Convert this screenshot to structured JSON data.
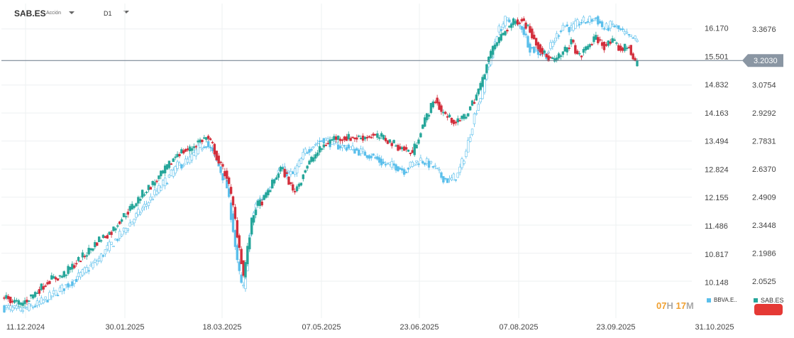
{
  "header": {
    "symbol": "SAB.ES",
    "symbol_type": "Acción",
    "timeframe": "D1"
  },
  "countdown": {
    "hours": "07",
    "hours_unit": "H",
    "minutes": "17",
    "minutes_unit": "M"
  },
  "legend": [
    {
      "label": "BBVA.E..",
      "color": "#5bbfeb"
    },
    {
      "label": "SAB.ES",
      "color": "#26a69a"
    }
  ],
  "colors": {
    "up": "#26a69a",
    "down": "#d32f3c",
    "compare": "#5bbfeb",
    "price_line": "#6b7a8a",
    "price_tag": "#8a96a3"
  },
  "chart_data": {
    "type": "candlestick",
    "title": "",
    "xlabel": "",
    "ylabel": "",
    "x_tick_labels": [
      "11.12.2024",
      "30.01.2025",
      "18.03.2025",
      "07.05.2025",
      "23.06.2025",
      "07.08.2025",
      "23.09.2025",
      "31.10.2025"
    ],
    "left_axis": {
      "ticks": [
        16.17,
        15.501,
        14.832,
        14.163,
        13.494,
        12.824,
        12.155,
        11.486,
        10.817,
        10.148
      ],
      "tick_labels": [
        "16.170",
        "15.501",
        "14.832",
        "14.163",
        "13.494",
        "12.824",
        "12.155",
        "11.486",
        "10.817",
        "10.148"
      ],
      "series": "BBVA.E.."
    },
    "right_axis": {
      "ticks": [
        3.3676,
        3.203,
        3.0754,
        2.9292,
        2.7831,
        2.637,
        2.4909,
        2.3448,
        2.1986,
        2.0525
      ],
      "tick_labels": [
        "3.3676",
        "",
        "3.0754",
        "2.9292",
        "2.7831",
        "2.6370",
        "2.4909",
        "2.3448",
        "2.1986",
        "2.0525"
      ],
      "series": "SAB.ES"
    },
    "ylim_right": [
      1.86,
      3.5
    ],
    "ylim_left": [
      9.3,
      16.75
    ],
    "current_price": 3.203,
    "current_price_label": "3.2030",
    "grid": true,
    "legend_position": "bottom-right",
    "sab_close_path": [
      [
        0,
        1.97
      ],
      [
        8,
        1.93
      ],
      [
        16,
        2.0
      ],
      [
        22,
        2.06
      ],
      [
        28,
        2.08
      ],
      [
        34,
        2.14
      ],
      [
        40,
        2.2
      ],
      [
        46,
        2.27
      ],
      [
        52,
        2.31
      ],
      [
        56,
        2.37
      ],
      [
        62,
        2.44
      ],
      [
        68,
        2.52
      ],
      [
        74,
        2.58
      ],
      [
        80,
        2.66
      ],
      [
        84,
        2.72
      ],
      [
        90,
        2.74
      ],
      [
        94,
        2.78
      ],
      [
        98,
        2.8
      ],
      [
        101,
        2.76
      ],
      [
        104,
        2.67
      ],
      [
        108,
        2.6
      ],
      [
        111,
        2.44
      ],
      [
        113,
        2.3
      ],
      [
        115,
        2.16
      ],
      [
        116,
        2.08
      ],
      [
        118,
        2.22
      ],
      [
        120,
        2.36
      ],
      [
        122,
        2.44
      ],
      [
        126,
        2.48
      ],
      [
        130,
        2.56
      ],
      [
        134,
        2.64
      ],
      [
        137,
        2.6
      ],
      [
        140,
        2.52
      ],
      [
        143,
        2.56
      ],
      [
        146,
        2.64
      ],
      [
        150,
        2.7
      ],
      [
        155,
        2.76
      ],
      [
        160,
        2.8
      ],
      [
        166,
        2.8
      ],
      [
        172,
        2.8
      ],
      [
        178,
        2.81
      ],
      [
        184,
        2.8
      ],
      [
        190,
        2.76
      ],
      [
        194,
        2.74
      ],
      [
        198,
        2.72
      ],
      [
        202,
        2.84
      ],
      [
        206,
        2.94
      ],
      [
        209,
        3.0
      ],
      [
        212,
        2.94
      ],
      [
        216,
        2.9
      ],
      [
        220,
        2.88
      ],
      [
        224,
        2.92
      ],
      [
        228,
        3.0
      ],
      [
        232,
        3.1
      ],
      [
        234,
        3.2
      ],
      [
        236,
        3.24
      ],
      [
        239,
        3.3
      ],
      [
        243,
        3.36
      ],
      [
        247,
        3.4
      ],
      [
        251,
        3.42
      ],
      [
        255,
        3.36
      ],
      [
        259,
        3.28
      ],
      [
        263,
        3.22
      ],
      [
        267,
        3.2
      ],
      [
        271,
        3.24
      ],
      [
        275,
        3.3
      ],
      [
        279,
        3.22
      ],
      [
        283,
        3.28
      ],
      [
        287,
        3.32
      ],
      [
        291,
        3.28
      ],
      [
        295,
        3.3
      ],
      [
        299,
        3.26
      ],
      [
        303,
        3.28
      ],
      [
        306,
        3.18
      ],
      [
        307,
        3.2
      ]
    ],
    "bbva_close_path": [
      [
        0,
        9.55
      ],
      [
        8,
        9.48
      ],
      [
        16,
        9.62
      ],
      [
        22,
        9.8
      ],
      [
        28,
        10.0
      ],
      [
        34,
        10.2
      ],
      [
        40,
        10.45
      ],
      [
        46,
        10.7
      ],
      [
        50,
        10.95
      ],
      [
        56,
        11.25
      ],
      [
        62,
        11.6
      ],
      [
        68,
        11.95
      ],
      [
        74,
        12.3
      ],
      [
        80,
        12.65
      ],
      [
        84,
        12.9
      ],
      [
        90,
        13.05
      ],
      [
        94,
        13.3
      ],
      [
        98,
        13.45
      ],
      [
        101,
        13.2
      ],
      [
        104,
        12.9
      ],
      [
        108,
        12.4
      ],
      [
        111,
        11.4
      ],
      [
        113,
        10.6
      ],
      [
        115,
        10.1
      ],
      [
        116,
        10.0
      ],
      [
        118,
        10.9
      ],
      [
        120,
        11.6
      ],
      [
        122,
        12.0
      ],
      [
        126,
        12.2
      ],
      [
        130,
        12.55
      ],
      [
        134,
        12.85
      ],
      [
        137,
        12.75
      ],
      [
        140,
        12.7
      ],
      [
        143,
        12.95
      ],
      [
        146,
        13.25
      ],
      [
        150,
        13.4
      ],
      [
        155,
        13.55
      ],
      [
        160,
        13.4
      ],
      [
        166,
        13.35
      ],
      [
        172,
        13.25
      ],
      [
        178,
        13.15
      ],
      [
        184,
        12.95
      ],
      [
        190,
        12.9
      ],
      [
        194,
        12.8
      ],
      [
        198,
        12.95
      ],
      [
        202,
        13.05
      ],
      [
        206,
        12.95
      ],
      [
        209,
        12.85
      ],
      [
        212,
        12.65
      ],
      [
        216,
        12.55
      ],
      [
        220,
        12.7
      ],
      [
        224,
        13.25
      ],
      [
        228,
        14.1
      ],
      [
        232,
        14.7
      ],
      [
        234,
        15.2
      ],
      [
        236,
        15.5
      ],
      [
        239,
        16.05
      ],
      [
        243,
        16.35
      ],
      [
        247,
        16.3
      ],
      [
        251,
        16.2
      ],
      [
        255,
        15.7
      ],
      [
        259,
        15.6
      ],
      [
        263,
        15.55
      ],
      [
        267,
        15.9
      ],
      [
        271,
        16.25
      ],
      [
        275,
        16.15
      ],
      [
        279,
        16.3
      ],
      [
        283,
        16.35
      ],
      [
        287,
        16.4
      ],
      [
        291,
        16.15
      ],
      [
        295,
        16.25
      ],
      [
        299,
        16.1
      ],
      [
        303,
        15.95
      ],
      [
        306,
        15.9
      ],
      [
        307,
        15.85
      ]
    ]
  }
}
